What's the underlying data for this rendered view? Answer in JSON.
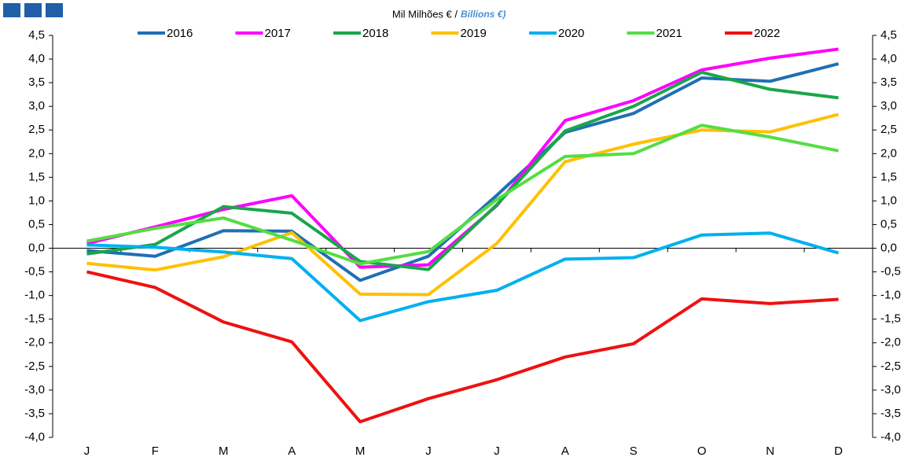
{
  "chart_data": {
    "type": "line",
    "title": "Mil Milhões € /",
    "subtitle": "Billions €)",
    "categories": [
      "J",
      "F",
      "M",
      "A",
      "M",
      "J",
      "J",
      "A",
      "S",
      "O",
      "N",
      "D"
    ],
    "series": [
      {
        "name": "2016",
        "color": "#1f6fb5",
        "values": [
          -0.05,
          -0.17,
          0.37,
          0.36,
          -0.68,
          -0.17,
          1.12,
          2.45,
          2.85,
          3.6,
          3.53,
          3.9
        ]
      },
      {
        "name": "2017",
        "color": "#ff00ff",
        "values": [
          0.1,
          0.45,
          0.82,
          1.11,
          -0.4,
          -0.35,
          0.9,
          2.7,
          3.12,
          3.77,
          4.02,
          4.21
        ]
      },
      {
        "name": "2018",
        "color": "#1aa64a",
        "values": [
          -0.12,
          0.08,
          0.88,
          0.74,
          -0.28,
          -0.45,
          0.92,
          2.48,
          3.0,
          3.72,
          3.36,
          3.18
        ]
      },
      {
        "name": "2019",
        "color": "#ffc000",
        "values": [
          -0.32,
          -0.46,
          -0.18,
          0.33,
          -0.97,
          -0.98,
          0.1,
          1.83,
          2.2,
          2.5,
          2.46,
          2.83
        ]
      },
      {
        "name": "2020",
        "color": "#00b0f0",
        "values": [
          0.07,
          0.02,
          -0.08,
          -0.22,
          -1.53,
          -1.13,
          -0.89,
          -0.23,
          -0.2,
          0.28,
          0.32,
          -0.1
        ]
      },
      {
        "name": "2021",
        "color": "#55dd44",
        "values": [
          0.15,
          0.42,
          0.64,
          0.17,
          -0.33,
          -0.07,
          1.03,
          1.94,
          2.0,
          2.6,
          2.35,
          2.06
        ]
      },
      {
        "name": "2022",
        "color": "#ee1111",
        "values": [
          -0.5,
          -0.83,
          -1.56,
          -1.98,
          -3.67,
          -3.18,
          -2.78,
          -2.3,
          -2.02,
          -1.07,
          -1.17,
          -1.08
        ]
      }
    ],
    "ylim": [
      -4,
      4.5
    ],
    "yticks": [
      {
        "value": -4,
        "label": "-4,0"
      },
      {
        "value": -3.5,
        "label": "-3,5"
      },
      {
        "value": -3,
        "label": "-3,0"
      },
      {
        "value": -2.5,
        "label": "-2,5"
      },
      {
        "value": -2,
        "label": "-2,0"
      },
      {
        "value": -1.5,
        "label": "-1,5"
      },
      {
        "value": -1,
        "label": "-1,0"
      },
      {
        "value": -0.5,
        "label": "-0,5"
      },
      {
        "value": 0,
        "label": "0,0"
      },
      {
        "value": 0.5,
        "label": "0,5"
      },
      {
        "value": 1,
        "label": "1,0"
      },
      {
        "value": 1.5,
        "label": "1,5"
      },
      {
        "value": 2,
        "label": "2,0"
      },
      {
        "value": 2.5,
        "label": "2,5"
      },
      {
        "value": 3,
        "label": "3,0"
      },
      {
        "value": 3.5,
        "label": "3,5"
      },
      {
        "value": 4,
        "label": "4,0"
      },
      {
        "value": 4.5,
        "label": "4,5"
      }
    ],
    "grid": false
  }
}
